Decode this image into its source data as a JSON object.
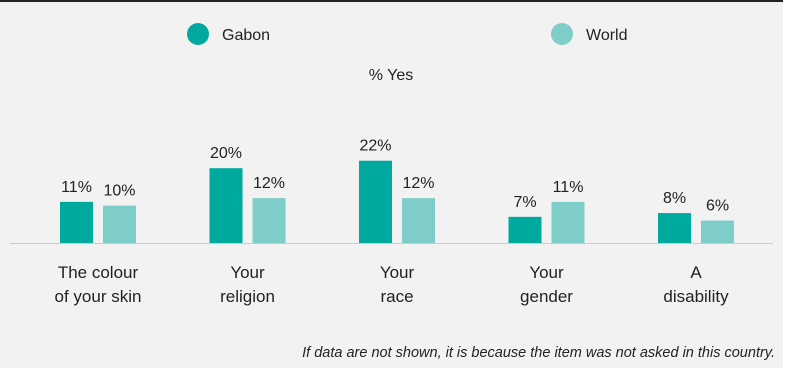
{
  "chart_data": {
    "type": "bar",
    "subtitle": "% Yes",
    "categories": [
      [
        "The colour",
        "of your skin"
      ],
      [
        "Your",
        "religion"
      ],
      [
        "Your",
        "race"
      ],
      [
        "Your",
        "gender"
      ],
      [
        "A",
        "disability"
      ]
    ],
    "series": [
      {
        "name": "Gabon",
        "color": "#00a99d",
        "values": [
          11,
          20,
          22,
          7,
          8
        ],
        "labels": [
          "11%",
          "20%",
          "22%",
          "7%",
          "8%"
        ]
      },
      {
        "name": "World",
        "color": "#7fcdc8",
        "values": [
          10,
          12,
          12,
          11,
          6
        ],
        "labels": [
          "10%",
          "12%",
          "12%",
          "11%",
          "6%"
        ]
      }
    ],
    "ylim": [
      0,
      30
    ],
    "legend_position": "top",
    "grid": false
  },
  "footnote": "If data are not shown, it is because the item was not asked in this country."
}
